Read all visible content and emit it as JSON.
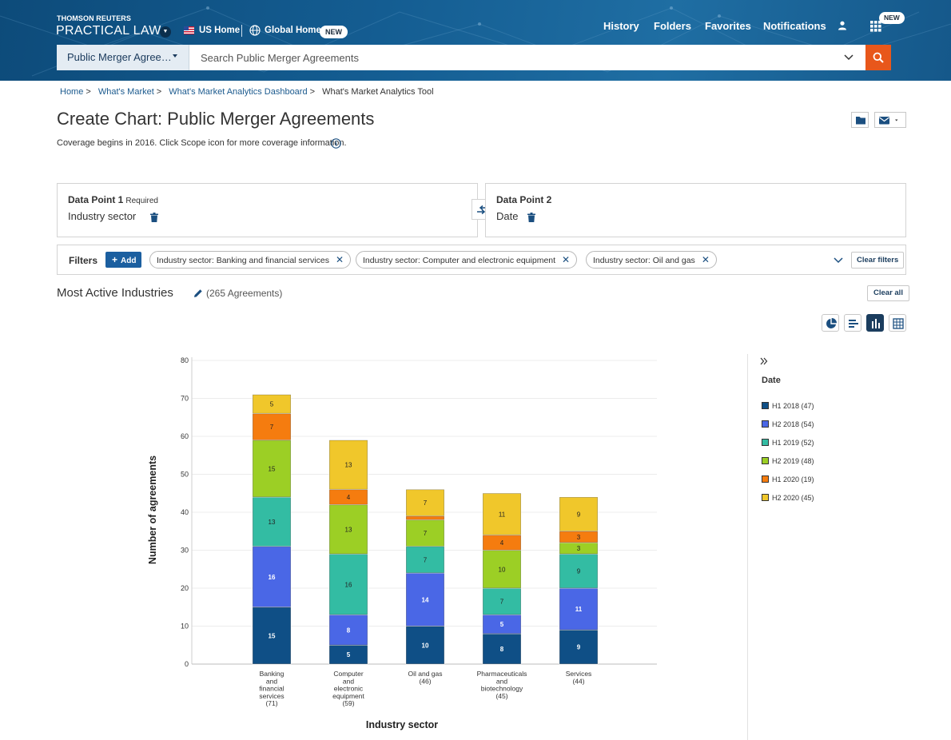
{
  "header": {
    "brand_top": "THOMSON REUTERS",
    "brand_main": "PRACTICAL LAW",
    "us_home": "US Home",
    "global_home": "Global Home",
    "new_badge": "NEW",
    "nav": [
      "History",
      "Folders",
      "Favorites",
      "Notifications"
    ],
    "apps_badge": "NEW"
  },
  "search": {
    "scope": "Public Merger Agree…",
    "placeholder": "Search Public Merger Agreements"
  },
  "breadcrumb": [
    "Home",
    "What's Market",
    "What's Market Analytics Dashboard",
    "What's Market Analytics Tool"
  ],
  "page": {
    "title": "Create Chart: Public Merger Agreements",
    "coverage": "Coverage begins in 2016. Click Scope icon for more coverage information."
  },
  "data_point_1": {
    "label": "Data Point 1",
    "required": "Required",
    "value": "Industry sector"
  },
  "data_point_2": {
    "label": "Data Point 2",
    "value": "Date"
  },
  "filters": {
    "label": "Filters",
    "add_label": "Add",
    "chips": [
      "Industry sector: Banking and financial services",
      "Industry sector: Computer and electronic equipment",
      "Industry sector: Oil and gas"
    ],
    "clear_label": "Clear filters"
  },
  "section": {
    "title": "Most Active Industries",
    "count": "(265 Agreements)",
    "clear_all": "Clear all"
  },
  "colors": {
    "brand_blue": "#145d92",
    "orange_accent": "#e8571b",
    "link": "#1b5a8e"
  },
  "chart_data": {
    "type": "bar",
    "stacked": true,
    "categories": [
      [
        "Banking",
        "and",
        "financial",
        "services",
        "(71)"
      ],
      [
        "Computer",
        "and",
        "electronic",
        "equipment",
        "(59)"
      ],
      [
        "Oil and gas",
        "(46)"
      ],
      [
        "Pharmaceuticals",
        "and",
        "biotechnology",
        "(45)"
      ],
      [
        "Services",
        "(44)"
      ]
    ],
    "series": [
      {
        "name": "H1 2018 (47)",
        "color": "#0f4f86",
        "values": [
          15,
          5,
          10,
          8,
          9
        ]
      },
      {
        "name": "H2 2018 (54)",
        "color": "#4a67e6",
        "values": [
          16,
          8,
          14,
          5,
          11
        ]
      },
      {
        "name": "H1 2019 (52)",
        "color": "#33bca3",
        "values": [
          13,
          16,
          7,
          7,
          9
        ]
      },
      {
        "name": "H2 2019 (48)",
        "color": "#9ccf25",
        "values": [
          15,
          13,
          7,
          10,
          3
        ]
      },
      {
        "name": "H1 2020 (19)",
        "color": "#f57c0f",
        "values": [
          7,
          4,
          1,
          4,
          3
        ]
      },
      {
        "name": "H2 2020 (45)",
        "color": "#f0c72b",
        "values": [
          5,
          13,
          7,
          11,
          9
        ]
      }
    ],
    "xlabel": "Industry sector",
    "ylabel": "Number of agreements",
    "ylim": [
      0,
      80
    ],
    "yticks": [
      0,
      10,
      20,
      30,
      40,
      50,
      60,
      70,
      80
    ],
    "grid": true,
    "legend_title": "Date",
    "legend_position": "right"
  }
}
